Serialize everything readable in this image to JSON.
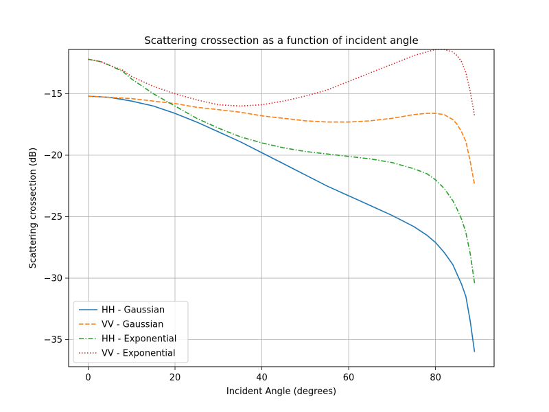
{
  "chart_data": {
    "type": "line",
    "title": "Scattering crossection as a function of incident angle",
    "xlabel": "Incident Angle (degrees)",
    "ylabel": "Scattering crossection (dB)",
    "xlim": [
      -4.5,
      93.5
    ],
    "ylim": [
      -37.2,
      -11.4
    ],
    "xticks": [
      0,
      20,
      40,
      60,
      80
    ],
    "yticks": [
      -35,
      -30,
      -25,
      -20,
      -15
    ],
    "xtick_labels": [
      "0",
      "20",
      "40",
      "60",
      "80"
    ],
    "ytick_labels": [
      "−35",
      "−30",
      "−25",
      "−20",
      "−15"
    ],
    "grid": true,
    "legend_position": "lower-left",
    "series": [
      {
        "name": "HH - Gaussian",
        "color": "#1f77b4",
        "style": "solid",
        "x": [
          0,
          5,
          10,
          15,
          20,
          25,
          30,
          35,
          40,
          45,
          50,
          55,
          60,
          65,
          70,
          75,
          78,
          80,
          82,
          84,
          85,
          86,
          87,
          88,
          89
        ],
        "y": [
          -15.2,
          -15.3,
          -15.6,
          -16.0,
          -16.6,
          -17.3,
          -18.1,
          -18.9,
          -19.8,
          -20.7,
          -21.6,
          -22.5,
          -23.3,
          -24.1,
          -24.9,
          -25.8,
          -26.5,
          -27.1,
          -27.9,
          -28.9,
          -29.7,
          -30.5,
          -31.5,
          -33.5,
          -36.0
        ]
      },
      {
        "name": "VV - Gaussian",
        "color": "#ff7f0e",
        "style": "dashed",
        "x": [
          0,
          5,
          10,
          15,
          20,
          25,
          30,
          35,
          40,
          45,
          50,
          55,
          60,
          65,
          70,
          75,
          78,
          80,
          82,
          84,
          85,
          86,
          87,
          88,
          89
        ],
        "y": [
          -15.2,
          -15.3,
          -15.4,
          -15.6,
          -15.8,
          -16.1,
          -16.3,
          -16.5,
          -16.8,
          -17.0,
          -17.2,
          -17.3,
          -17.3,
          -17.2,
          -17.0,
          -16.7,
          -16.6,
          -16.6,
          -16.7,
          -17.1,
          -17.5,
          -18.1,
          -18.9,
          -20.5,
          -22.4
        ]
      },
      {
        "name": "HH - Exponential",
        "color": "#2ca02c",
        "style": "dashdot",
        "x": [
          0,
          3,
          5,
          8,
          10,
          15,
          20,
          25,
          30,
          35,
          40,
          45,
          50,
          55,
          60,
          65,
          70,
          75,
          78,
          80,
          82,
          84,
          85,
          86,
          87,
          88,
          89
        ],
        "y": [
          -12.2,
          -12.4,
          -12.7,
          -13.2,
          -13.8,
          -15.0,
          -16.0,
          -17.0,
          -17.8,
          -18.5,
          -19.0,
          -19.4,
          -19.7,
          -19.9,
          -20.1,
          -20.3,
          -20.6,
          -21.1,
          -21.5,
          -22.0,
          -22.7,
          -23.7,
          -24.4,
          -25.2,
          -26.3,
          -28.0,
          -30.4
        ]
      },
      {
        "name": "VV - Exponential",
        "color": "#d62728",
        "style": "dotted",
        "x": [
          0,
          3,
          5,
          8,
          10,
          15,
          20,
          25,
          30,
          35,
          40,
          45,
          50,
          55,
          60,
          65,
          70,
          75,
          78,
          80,
          82,
          84,
          85,
          86,
          87,
          88,
          89
        ],
        "y": [
          -12.2,
          -12.4,
          -12.7,
          -13.1,
          -13.6,
          -14.4,
          -15.0,
          -15.5,
          -15.9,
          -16.0,
          -15.9,
          -15.6,
          -15.2,
          -14.7,
          -14.0,
          -13.3,
          -12.6,
          -11.9,
          -11.6,
          -11.4,
          -11.4,
          -11.6,
          -11.9,
          -12.4,
          -13.3,
          -14.8,
          -16.8
        ]
      }
    ]
  }
}
